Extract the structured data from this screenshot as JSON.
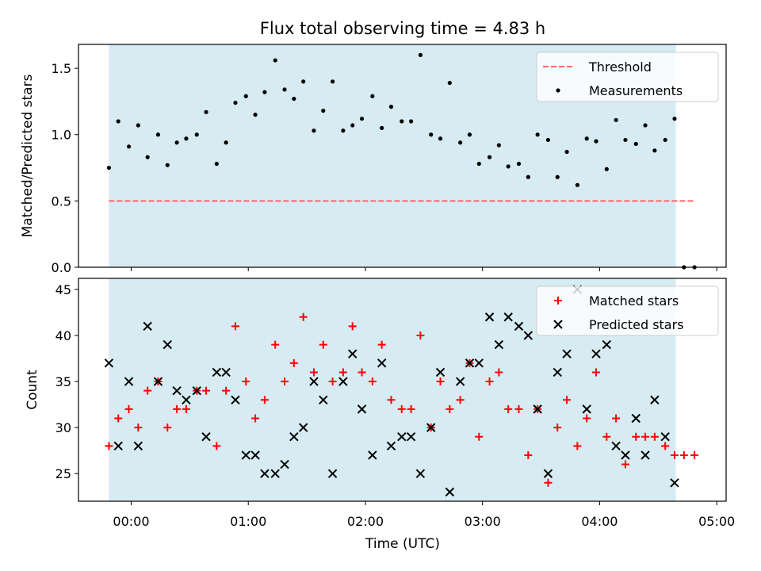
{
  "title": "Flux total observing time = 4.83 h",
  "chart_data": [
    {
      "type": "scatter",
      "ylabel": "Matched/Predicted stars",
      "ylim": [
        0,
        1.68
      ],
      "yticks": [
        0.0,
        0.5,
        1.0,
        1.5
      ],
      "ytick_labels": [
        "0.0",
        "0.5",
        "1.0",
        "1.5"
      ],
      "xlim_hours": [
        -0.45,
        5.08
      ],
      "shaded_span_hours": [
        -0.19,
        4.65
      ],
      "shade_color": "#add8e6",
      "grid": false,
      "legend_position": "top-right",
      "threshold": {
        "name": "Threshold",
        "value": 0.5,
        "x_range_hours": [
          -0.19,
          4.81
        ],
        "color": "#ff6666",
        "style": "dashed"
      },
      "series": [
        {
          "name": "Measurements",
          "color": "#000000",
          "marker": "dot",
          "x_hours": [
            -0.19,
            -0.11,
            -0.02,
            0.06,
            0.14,
            0.23,
            0.31,
            0.39,
            0.47,
            0.56,
            0.64,
            0.73,
            0.81,
            0.89,
            0.98,
            1.06,
            1.14,
            1.23,
            1.31,
            1.39,
            1.47,
            1.56,
            1.64,
            1.72,
            1.81,
            1.89,
            1.97,
            2.06,
            2.14,
            2.22,
            2.31,
            2.39,
            2.47,
            2.56,
            2.64,
            2.72,
            2.81,
            2.89,
            2.97,
            3.06,
            3.14,
            3.22,
            3.31,
            3.39,
            3.47,
            3.56,
            3.64,
            3.72,
            3.81,
            3.89,
            3.97,
            4.06,
            4.14,
            4.22,
            4.31,
            4.39,
            4.47,
            4.56,
            4.64,
            4.72,
            4.81
          ],
          "y": [
            0.75,
            1.1,
            0.91,
            1.07,
            0.83,
            1.0,
            0.77,
            0.94,
            0.97,
            1.0,
            1.17,
            0.78,
            0.94,
            1.24,
            1.29,
            1.15,
            1.32,
            1.56,
            1.34,
            1.27,
            1.4,
            1.03,
            1.18,
            1.4,
            1.03,
            1.07,
            1.12,
            1.29,
            1.05,
            1.21,
            1.1,
            1.1,
            1.6,
            1.0,
            0.97,
            1.39,
            0.94,
            1.0,
            0.78,
            0.83,
            0.92,
            0.76,
            0.78,
            0.68,
            1.0,
            0.96,
            0.68,
            0.87,
            0.62,
            0.97,
            0.95,
            0.74,
            1.11,
            0.96,
            0.93,
            1.07,
            0.88,
            0.96,
            1.12,
            0.0,
            0.0
          ]
        }
      ]
    },
    {
      "type": "scatter",
      "xlabel": "Time (UTC)",
      "ylabel": "Count",
      "ylim": [
        22,
        46.2
      ],
      "yticks": [
        25,
        30,
        35,
        40,
        45
      ],
      "ytick_labels": [
        "25",
        "30",
        "35",
        "40",
        "45"
      ],
      "xlim_hours": [
        -0.45,
        5.08
      ],
      "xticks_hours": [
        0,
        1,
        2,
        3,
        4,
        5
      ],
      "xtick_labels": [
        "00:00",
        "01:00",
        "02:00",
        "03:00",
        "04:00",
        "05:00"
      ],
      "shaded_span_hours": [
        -0.19,
        4.65
      ],
      "shade_color": "#add8e6",
      "grid": false,
      "legend_position": "top-right",
      "series": [
        {
          "name": "Matched stars",
          "color": "#ff0000",
          "marker": "plus",
          "x_hours": [
            -0.19,
            -0.11,
            -0.02,
            0.06,
            0.14,
            0.23,
            0.31,
            0.39,
            0.47,
            0.56,
            0.64,
            0.73,
            0.81,
            0.89,
            0.98,
            1.06,
            1.14,
            1.23,
            1.31,
            1.39,
            1.47,
            1.56,
            1.64,
            1.72,
            1.81,
            1.89,
            1.97,
            2.06,
            2.14,
            2.22,
            2.31,
            2.39,
            2.47,
            2.56,
            2.64,
            2.72,
            2.81,
            2.89,
            2.97,
            3.06,
            3.14,
            3.22,
            3.31,
            3.39,
            3.47,
            3.56,
            3.64,
            3.72,
            3.81,
            3.89,
            3.97,
            4.06,
            4.14,
            4.22,
            4.31,
            4.39,
            4.47,
            4.56,
            4.64,
            4.72,
            4.81
          ],
          "y": [
            28,
            31,
            32,
            30,
            34,
            35,
            30,
            32,
            32,
            34,
            34,
            28,
            34,
            41,
            35,
            31,
            33,
            39,
            35,
            37,
            42,
            36,
            39,
            35,
            36,
            41,
            36,
            35,
            39,
            33,
            32,
            32,
            40,
            30,
            35,
            32,
            33,
            37,
            29,
            35,
            36,
            32,
            32,
            27,
            32,
            24,
            30,
            33,
            28,
            31,
            36,
            29,
            31,
            26,
            29,
            29,
            29,
            28,
            27,
            27,
            27
          ]
        },
        {
          "name": "Predicted stars",
          "color": "#000000",
          "marker": "x",
          "x_hours": [
            -0.19,
            -0.11,
            -0.02,
            0.06,
            0.14,
            0.23,
            0.31,
            0.39,
            0.47,
            0.56,
            0.64,
            0.73,
            0.81,
            0.89,
            0.98,
            1.06,
            1.14,
            1.23,
            1.31,
            1.39,
            1.47,
            1.56,
            1.64,
            1.72,
            1.81,
            1.89,
            1.97,
            2.06,
            2.14,
            2.22,
            2.31,
            2.39,
            2.47,
            2.56,
            2.64,
            2.72,
            2.81,
            2.89,
            2.97,
            3.06,
            3.14,
            3.22,
            3.31,
            3.39,
            3.47,
            3.56,
            3.64,
            3.72,
            3.81,
            3.89,
            3.97,
            4.06,
            4.14,
            4.22,
            4.31,
            4.39,
            4.47,
            4.56,
            4.64
          ],
          "y": [
            37,
            28,
            35,
            28,
            41,
            35,
            39,
            34,
            33,
            34,
            29,
            36,
            36,
            33,
            27,
            27,
            25,
            25,
            26,
            29,
            30,
            35,
            33,
            25,
            35,
            38,
            32,
            27,
            37,
            28,
            29,
            29,
            25,
            30,
            36,
            23,
            35,
            37,
            37,
            42,
            39,
            42,
            41,
            40,
            32,
            25,
            36,
            38,
            45,
            32,
            38,
            39,
            28,
            27,
            31,
            27,
            33,
            29,
            24
          ]
        }
      ]
    }
  ]
}
